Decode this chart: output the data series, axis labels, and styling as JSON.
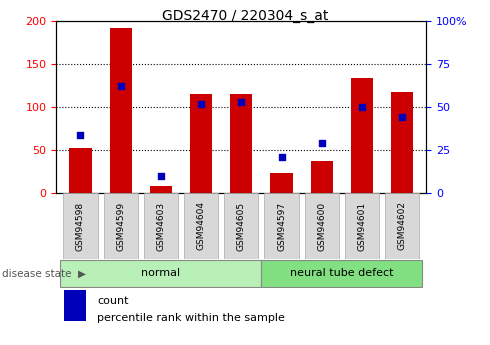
{
  "title": "GDS2470 / 220304_s_at",
  "categories": [
    "GSM94598",
    "GSM94599",
    "GSM94603",
    "GSM94604",
    "GSM94605",
    "GSM94597",
    "GSM94600",
    "GSM94601",
    "GSM94602"
  ],
  "counts": [
    52,
    192,
    8,
    115,
    115,
    23,
    37,
    134,
    117
  ],
  "percentiles": [
    34,
    62,
    10,
    52,
    53,
    21,
    29,
    50,
    44
  ],
  "normal_indices": [
    0,
    1,
    2,
    3,
    4
  ],
  "defect_indices": [
    5,
    6,
    7,
    8
  ],
  "normal_color": "#b8f0b8",
  "defect_color": "#82e082",
  "tick_bg_color": "#d8d8d8",
  "bar_color": "#cc0000",
  "dot_color": "#0000bb",
  "left_ylim": [
    0,
    200
  ],
  "right_ylim": [
    0,
    100
  ],
  "left_yticks": [
    0,
    50,
    100,
    150,
    200
  ],
  "right_yticks": [
    0,
    25,
    50,
    75,
    100
  ],
  "right_yticklabels": [
    "0",
    "25",
    "50",
    "75",
    "100%"
  ],
  "bar_width": 0.55,
  "plot_bg_color": "#ffffff"
}
